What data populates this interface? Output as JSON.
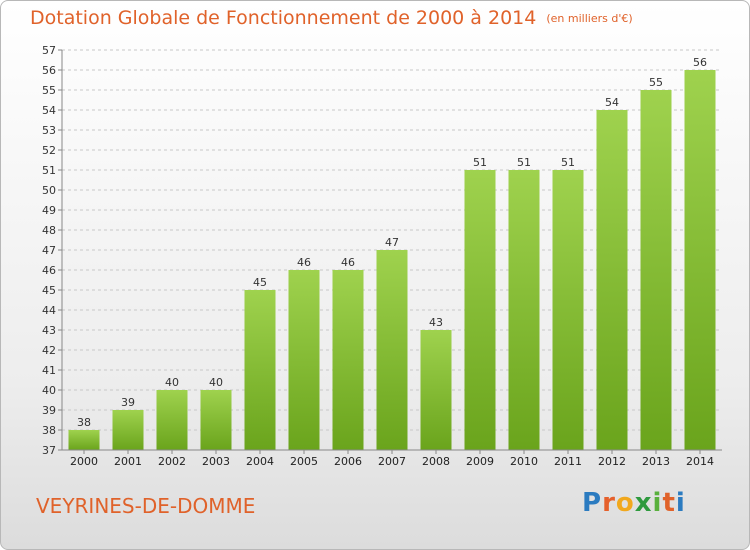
{
  "title": "Dotation Globale de Fonctionnement de 2000 à 2014",
  "unit": "(en milliers d'€)",
  "commune": "VEYRINES-DE-DOMME",
  "logo": {
    "p": "P",
    "r": "r",
    "o": "o",
    "x": "x",
    "i1": "i",
    "t": "t",
    "i2": "i"
  },
  "chart_data": {
    "type": "bar",
    "categories": [
      "2000",
      "2001",
      "2002",
      "2003",
      "2004",
      "2005",
      "2006",
      "2007",
      "2008",
      "2009",
      "2010",
      "2011",
      "2012",
      "2013",
      "2014"
    ],
    "values": [
      38,
      39,
      40,
      40,
      45,
      46,
      46,
      47,
      43,
      51,
      51,
      51,
      54,
      55,
      56
    ],
    "data_labels": [
      "38",
      "39",
      "40",
      "40",
      "45",
      "46",
      "46",
      "47",
      "43",
      "51",
      "51",
      "51",
      "54",
      "55",
      "56"
    ],
    "ylim": [
      37,
      57
    ],
    "yticks": [
      37,
      38,
      39,
      40,
      41,
      42,
      43,
      44,
      45,
      46,
      47,
      48,
      49,
      50,
      51,
      52,
      53,
      54,
      55,
      56,
      57
    ],
    "grid": true,
    "colors": {
      "bar_top": "#9fd24e",
      "bar_bottom": "#6aa41c",
      "text": "#e0622a"
    }
  }
}
